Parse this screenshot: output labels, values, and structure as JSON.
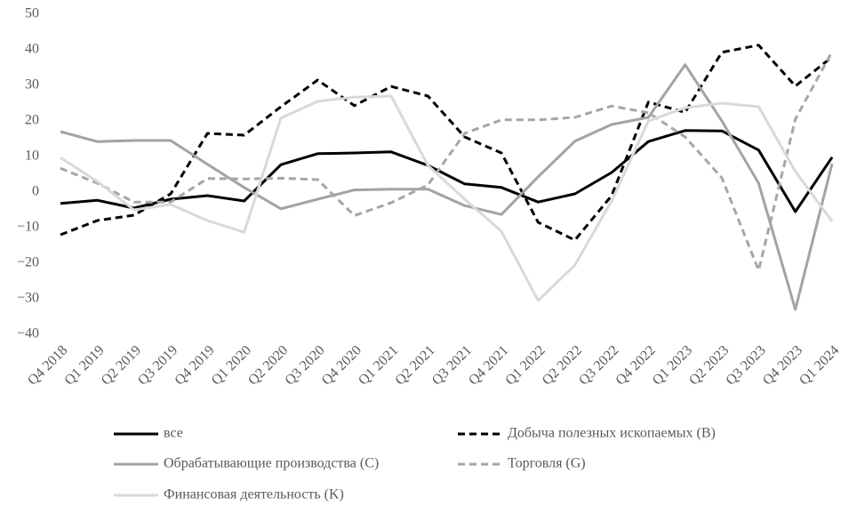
{
  "chart_data": {
    "type": "line",
    "categories": [
      "Q4 2018",
      "Q1 2019",
      "Q2 2019",
      "Q3 2019",
      "Q4 2019",
      "Q1 2020",
      "Q2 2020",
      "Q3 2020",
      "Q4 2020",
      "Q1 2021",
      "Q2 2021",
      "Q3 2021",
      "Q4 2021",
      "Q1 2022",
      "Q2 2022",
      "Q3 2022",
      "Q4 2022",
      "Q1 2023",
      "Q2 2023",
      "Q3 2023",
      "Q4 2023",
      "Q1 2024"
    ],
    "ylim": [
      -40,
      50
    ],
    "yticks": [
      {
        "value": -40,
        "label": "−40"
      },
      {
        "value": -30,
        "label": "−30"
      },
      {
        "value": -20,
        "label": "−20"
      },
      {
        "value": -10,
        "label": "−10"
      },
      0,
      10,
      20,
      30,
      40,
      50
    ],
    "grid": false,
    "series": [
      {
        "name": "все",
        "color": "#000000",
        "dashed": false,
        "values": [
          -3.2,
          -2.3,
          -4.5,
          -2,
          -1,
          -2.5,
          7.7,
          10.8,
          11,
          11.3,
          7.5,
          2.3,
          1.3,
          -2.8,
          -0.5,
          5.5,
          14.2,
          17.3,
          17.2,
          11.8,
          -5.5,
          9.8
        ]
      },
      {
        "name": "Добыча полезных ископаемых (B)",
        "color": "#000000",
        "dashed": true,
        "values": [
          -12,
          -8,
          -6.5,
          -0.5,
          16.5,
          16,
          24,
          31.5,
          24.3,
          29.7,
          27,
          15.5,
          11,
          -8.5,
          -13.5,
          -1,
          25.3,
          22.4,
          39.3,
          41.3,
          29.8,
          38
        ]
      },
      {
        "name": "Обрабатывающие производства (C)",
        "color": "#a3a3a3",
        "dashed": false,
        "values": [
          17,
          14.2,
          14.5,
          14.5,
          7.8,
          1.3,
          -4.7,
          -2,
          0.6,
          0.8,
          0.8,
          -3.8,
          -6.3,
          4.3,
          14.3,
          19,
          21,
          35.8,
          20,
          2.5,
          -33,
          8
        ]
      },
      {
        "name": "Торговля (G)",
        "color": "#a6a6a6",
        "dashed": true,
        "values": [
          6.7,
          2.5,
          -2.8,
          -2.8,
          3.8,
          3.7,
          3.9,
          3.5,
          -6.6,
          -3,
          2,
          16.5,
          20.3,
          20.3,
          21,
          24.2,
          22.3,
          15.5,
          4,
          -22,
          20.5,
          39.5
        ]
      },
      {
        "name": "Финансовая деятельность (K)",
        "color": "#d9d9d9",
        "dashed": false,
        "values": [
          9.7,
          3,
          -5,
          -3.5,
          -8,
          -11.3,
          20.8,
          25.5,
          26.7,
          27,
          7.5,
          -2,
          -11,
          -30.5,
          -20.5,
          -2.5,
          20,
          23.7,
          25,
          24,
          5.8,
          -8.2
        ]
      }
    ]
  }
}
